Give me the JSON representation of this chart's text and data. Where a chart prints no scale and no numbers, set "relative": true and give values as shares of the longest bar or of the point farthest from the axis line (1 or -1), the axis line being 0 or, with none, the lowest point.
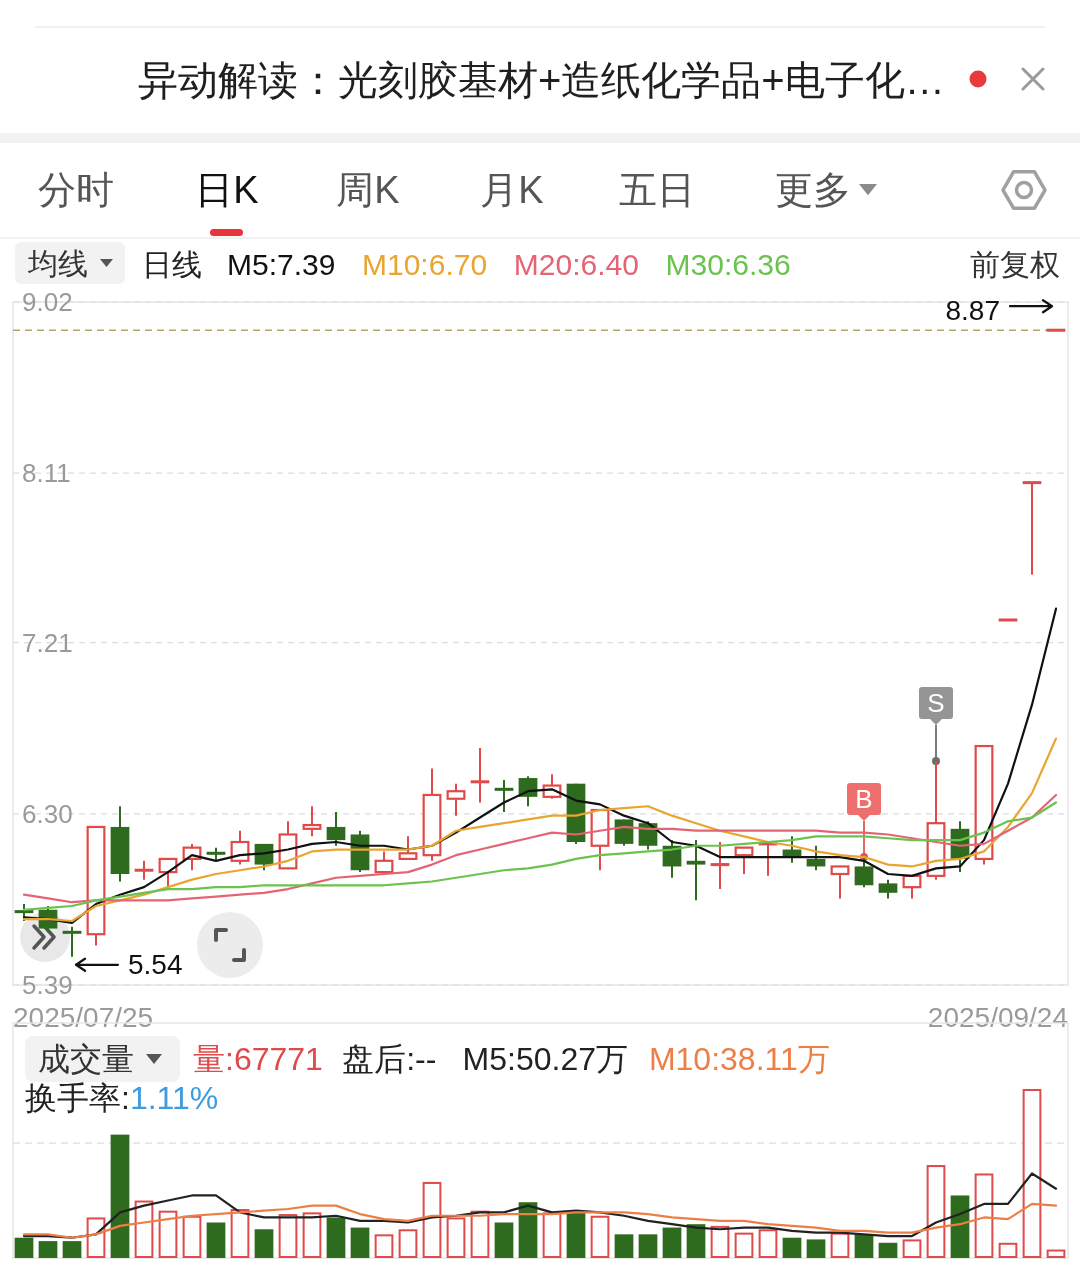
{
  "chart_data": [
    {
      "type": "candlestick",
      "title": "异动解读：光刻胶基材+造纸化学品+电子化…",
      "annotations": [
        "分时",
        "日K",
        "周K",
        "月K",
        "五日",
        "更多",
        "均线",
        "日线",
        "前复权",
        "2025/07/25",
        "2025/09/24",
        "5.54",
        {
          "text": "8.87",
          "y": 8.87
        },
        {
          "text": "B",
          "y": 6.07
        },
        {
          "text": "S",
          "y": 6.58
        }
      ],
      "categories": [
        null,
        null,
        null,
        null,
        null,
        null,
        null,
        null,
        null,
        null,
        null,
        null,
        null,
        null,
        null,
        null,
        null,
        null,
        null,
        null,
        null,
        null,
        null,
        null,
        null,
        null,
        null,
        null,
        null,
        null,
        null,
        null,
        null,
        null,
        null,
        null,
        null,
        null,
        null,
        null,
        null,
        null,
        null,
        null
      ],
      "ohlc": [
        [
          5.78,
          5.82,
          5.73,
          5.78
        ],
        [
          5.79,
          5.81,
          5.67,
          5.69
        ],
        [
          5.67,
          5.7,
          5.54,
          5.67
        ],
        [
          5.66,
          6.23,
          5.6,
          6.23
        ],
        [
          6.23,
          6.34,
          5.94,
          5.98
        ],
        [
          6.0,
          6.05,
          5.95,
          6.0
        ],
        [
          5.99,
          6.06,
          5.9,
          6.06
        ],
        [
          6.06,
          6.14,
          6.0,
          6.12
        ],
        [
          6.09,
          6.12,
          6.05,
          6.09
        ],
        [
          6.05,
          6.21,
          6.03,
          6.15
        ],
        [
          6.14,
          6.14,
          6.0,
          6.03
        ],
        [
          6.01,
          6.26,
          6.01,
          6.19
        ],
        [
          6.22,
          6.34,
          6.18,
          6.24
        ],
        [
          6.23,
          6.31,
          6.13,
          6.16
        ],
        [
          6.19,
          6.21,
          5.99,
          6.0
        ],
        [
          5.99,
          6.1,
          5.99,
          6.05
        ],
        [
          6.06,
          6.18,
          6.06,
          6.09
        ],
        [
          6.08,
          6.54,
          6.05,
          6.4
        ],
        [
          6.38,
          6.46,
          6.29,
          6.42
        ],
        [
          6.47,
          6.65,
          6.36,
          6.47
        ],
        [
          6.43,
          6.48,
          6.31,
          6.43
        ],
        [
          6.49,
          6.5,
          6.34,
          6.39
        ],
        [
          6.39,
          6.51,
          6.38,
          6.45
        ],
        [
          6.46,
          6.46,
          6.14,
          6.15
        ],
        [
          6.13,
          6.32,
          6.0,
          6.32
        ],
        [
          6.27,
          6.27,
          6.13,
          6.14
        ],
        [
          6.25,
          6.26,
          6.11,
          6.13
        ],
        [
          6.13,
          6.16,
          5.96,
          6.02
        ],
        [
          6.05,
          6.16,
          5.84,
          6.03
        ],
        [
          6.03,
          6.15,
          5.9,
          6.03
        ],
        [
          6.08,
          6.12,
          5.98,
          6.12
        ],
        [
          6.14,
          6.15,
          5.97,
          6.14
        ],
        [
          6.11,
          6.18,
          6.04,
          6.07
        ],
        [
          6.06,
          6.13,
          6.0,
          6.02
        ],
        [
          5.98,
          6.02,
          5.85,
          6.02
        ],
        [
          6.02,
          6.07,
          5.91,
          5.92
        ],
        [
          5.93,
          5.95,
          5.85,
          5.88
        ],
        [
          5.91,
          5.97,
          5.85,
          5.97
        ],
        [
          5.97,
          6.58,
          5.95,
          6.25
        ],
        [
          6.22,
          6.26,
          5.99,
          6.06
        ],
        [
          6.06,
          6.66,
          6.03,
          6.66
        ],
        [
          7.33,
          7.33,
          7.33,
          7.33
        ],
        [
          8.06,
          8.06,
          7.57,
          8.06
        ],
        [
          8.87,
          8.87,
          8.87,
          8.87
        ]
      ],
      "colors": [
        "#2e6b1e",
        "#2e6b1e",
        "#2e6b1e",
        "#e04a4a",
        "#2e6b1e",
        "#e04a4a",
        "#e04a4a",
        "#e04a4a",
        "#2e6b1e",
        "#e04a4a",
        "#2e6b1e",
        "#e04a4a",
        "#e04a4a",
        "#2e6b1e",
        "#2e6b1e",
        "#e04a4a",
        "#e04a4a",
        "#e04a4a",
        "#e04a4a",
        "#e04a4a",
        "#2e6b1e",
        "#2e6b1e",
        "#e04a4a",
        "#2e6b1e",
        "#e04a4a",
        "#2e6b1e",
        "#2e6b1e",
        "#2e6b1e",
        "#2e6b1e",
        "#e04a4a",
        "#e04a4a",
        "#e04a4a",
        "#2e6b1e",
        "#2e6b1e",
        "#e04a4a",
        "#2e6b1e",
        "#2e6b1e",
        "#e04a4a",
        "#e04a4a",
        "#2e6b1e",
        "#e04a4a",
        "#e04a4a",
        "#e04a4a",
        "#e04a4a"
      ],
      "series": [
        {
          "name": "M5:7.39",
          "type": "line",
          "color": "#111111",
          "values": [
            5.75,
            5.74,
            5.72,
            5.82,
            5.87,
            5.91,
            5.99,
            6.08,
            6.05,
            6.08,
            6.09,
            6.11,
            6.14,
            6.15,
            6.13,
            6.13,
            6.11,
            6.13,
            6.2,
            6.28,
            6.36,
            6.42,
            6.43,
            6.37,
            6.35,
            6.29,
            6.25,
            6.15,
            6.13,
            6.07,
            6.07,
            6.07,
            6.07,
            6.07,
            6.07,
            6.05,
            5.98,
            5.97,
            6.01,
            6.02,
            6.16,
            6.46,
            6.88,
            7.39
          ]
        },
        {
          "name": "M10:6.70",
          "type": "line",
          "color": "#e8a531",
          "values": [
            5.74,
            5.74,
            5.73,
            5.81,
            5.84,
            5.87,
            5.91,
            5.95,
            5.98,
            6.0,
            6.02,
            6.05,
            6.1,
            6.11,
            6.11,
            6.11,
            6.11,
            6.13,
            6.21,
            6.23,
            6.25,
            6.27,
            6.29,
            6.29,
            6.32,
            6.33,
            6.34,
            6.29,
            6.25,
            6.21,
            6.18,
            6.15,
            6.13,
            6.1,
            6.08,
            6.07,
            6.03,
            6.02,
            6.05,
            6.06,
            6.1,
            6.23,
            6.41,
            6.7
          ]
        },
        {
          "name": "M20:6.40",
          "type": "line",
          "color": "#e46474",
          "values": [
            5.87,
            5.85,
            5.83,
            5.84,
            5.84,
            5.84,
            5.84,
            5.85,
            5.86,
            5.87,
            5.88,
            5.9,
            5.93,
            5.96,
            5.97,
            5.98,
            5.99,
            6.03,
            6.08,
            6.11,
            6.14,
            6.17,
            6.2,
            6.19,
            6.21,
            6.23,
            6.22,
            6.22,
            6.21,
            6.21,
            6.21,
            6.21,
            6.21,
            6.21,
            6.2,
            6.2,
            6.19,
            6.17,
            6.15,
            6.13,
            6.14,
            6.21,
            6.28,
            6.4
          ]
        },
        {
          "name": "M30:6.36",
          "type": "line",
          "color": "#6ac24f",
          "values": [
            5.79,
            5.8,
            5.81,
            5.84,
            5.86,
            5.88,
            5.9,
            5.9,
            5.91,
            5.91,
            5.92,
            5.92,
            5.92,
            5.92,
            5.92,
            5.92,
            5.93,
            5.94,
            5.96,
            5.98,
            6.0,
            6.01,
            6.03,
            6.06,
            6.08,
            6.09,
            6.1,
            6.11,
            6.13,
            6.13,
            6.14,
            6.15,
            6.16,
            6.18,
            6.18,
            6.18,
            6.17,
            6.16,
            6.16,
            6.16,
            6.2,
            6.26,
            6.28,
            6.36
          ]
        }
      ],
      "ylim": [
        5.39,
        9.02
      ],
      "yticks": [
        9.02,
        8.11,
        7.21,
        {
          "value": 6.3,
          "label": "6.30"
        },
        5.39
      ],
      "grid": "y",
      "ref_lines": [
        {
          "axis": "y",
          "value": 8.87,
          "color": "#b8a46c",
          "line_style": "dashed"
        }
      ]
    },
    {
      "type": "bar",
      "relative": true,
      "categories": [
        null,
        null,
        null,
        null,
        null,
        null,
        null,
        null,
        null,
        null,
        null,
        null,
        null,
        null,
        null,
        null,
        null,
        null,
        null,
        null,
        null,
        null,
        null,
        null,
        null,
        null,
        null,
        null,
        null,
        null,
        null,
        null,
        null,
        null,
        null,
        null,
        null,
        null,
        null,
        null,
        null,
        null,
        null,
        null
      ],
      "series": [
        {
          "type": "bar",
          "colors": [
            "#2e6b1e",
            "#2e6b1e",
            "#2e6b1e",
            "#e04a4a",
            "#2e6b1e",
            "#e04a4a",
            "#e04a4a",
            "#e04a4a",
            "#2e6b1e",
            "#e04a4a",
            "#2e6b1e",
            "#e04a4a",
            "#e04a4a",
            "#2e6b1e",
            "#2e6b1e",
            "#e04a4a",
            "#e04a4a",
            "#e04a4a",
            "#e04a4a",
            "#e04a4a",
            "#2e6b1e",
            "#2e6b1e",
            "#e04a4a",
            "#2e6b1e",
            "#e04a4a",
            "#2e6b1e",
            "#2e6b1e",
            "#2e6b1e",
            "#2e6b1e",
            "#e04a4a",
            "#e04a4a",
            "#e04a4a",
            "#2e6b1e",
            "#2e6b1e",
            "#e04a4a",
            "#2e6b1e",
            "#2e6b1e",
            "#e04a4a",
            "#e04a4a",
            "#2e6b1e",
            "#e04a4a",
            "#e04a4a",
            "#e04a4a",
            "#e04a4a"
          ],
          "values": [
            0.12,
            0.1,
            0.1,
            0.24,
            0.73,
            0.34,
            0.28,
            0.25,
            0.21,
            0.29,
            0.17,
            0.26,
            0.27,
            0.24,
            0.18,
            0.14,
            0.17,
            0.45,
            0.24,
            0.28,
            0.21,
            0.33,
            0.27,
            0.27,
            0.25,
            0.14,
            0.14,
            0.18,
            0.2,
            0.19,
            0.15,
            0.17,
            0.12,
            0.11,
            0.15,
            0.14,
            0.09,
            0.11,
            0.55,
            0.37,
            0.5,
            0.09,
            1,
            0.05
          ]
        },
        {
          "name": "M5:50.27万",
          "type": "line",
          "color": "#222222",
          "values": [
            0.13,
            0.13,
            0.12,
            0.14,
            0.27,
            0.31,
            0.34,
            0.37,
            0.37,
            0.27,
            0.24,
            0.24,
            0.24,
            0.25,
            0.22,
            0.22,
            0.21,
            0.24,
            0.25,
            0.27,
            0.27,
            0.31,
            0.27,
            0.28,
            0.27,
            0.25,
            0.22,
            0.2,
            0.18,
            0.17,
            0.18,
            0.18,
            0.16,
            0.15,
            0.15,
            0.14,
            0.13,
            0.13,
            0.21,
            0.26,
            0.32,
            0.32,
            0.5,
            0.41
          ]
        },
        {
          "name": "M10:38.11万",
          "type": "line",
          "color": "#ec7f46",
          "values": [
            0.14,
            0.14,
            0.12,
            0.14,
            0.19,
            0.21,
            0.23,
            0.25,
            0.26,
            0.27,
            0.28,
            0.29,
            0.31,
            0.31,
            0.26,
            0.23,
            0.22,
            0.25,
            0.25,
            0.25,
            0.26,
            0.26,
            0.26,
            0.27,
            0.27,
            0.27,
            0.26,
            0.24,
            0.23,
            0.22,
            0.22,
            0.2,
            0.19,
            0.18,
            0.16,
            0.16,
            0.15,
            0.15,
            0.18,
            0.2,
            0.24,
            0.23,
            0.32,
            0.31
          ]
        }
      ],
      "ref_lines": [
        {
          "axis": "y",
          "value": 0.68,
          "color": "#dcdcdc",
          "line_style": "dashed"
        }
      ],
      "annotations": [
        "成交量",
        "量:67771",
        "盘后:--",
        "换手率:1.11%"
      ]
    }
  ]
}
